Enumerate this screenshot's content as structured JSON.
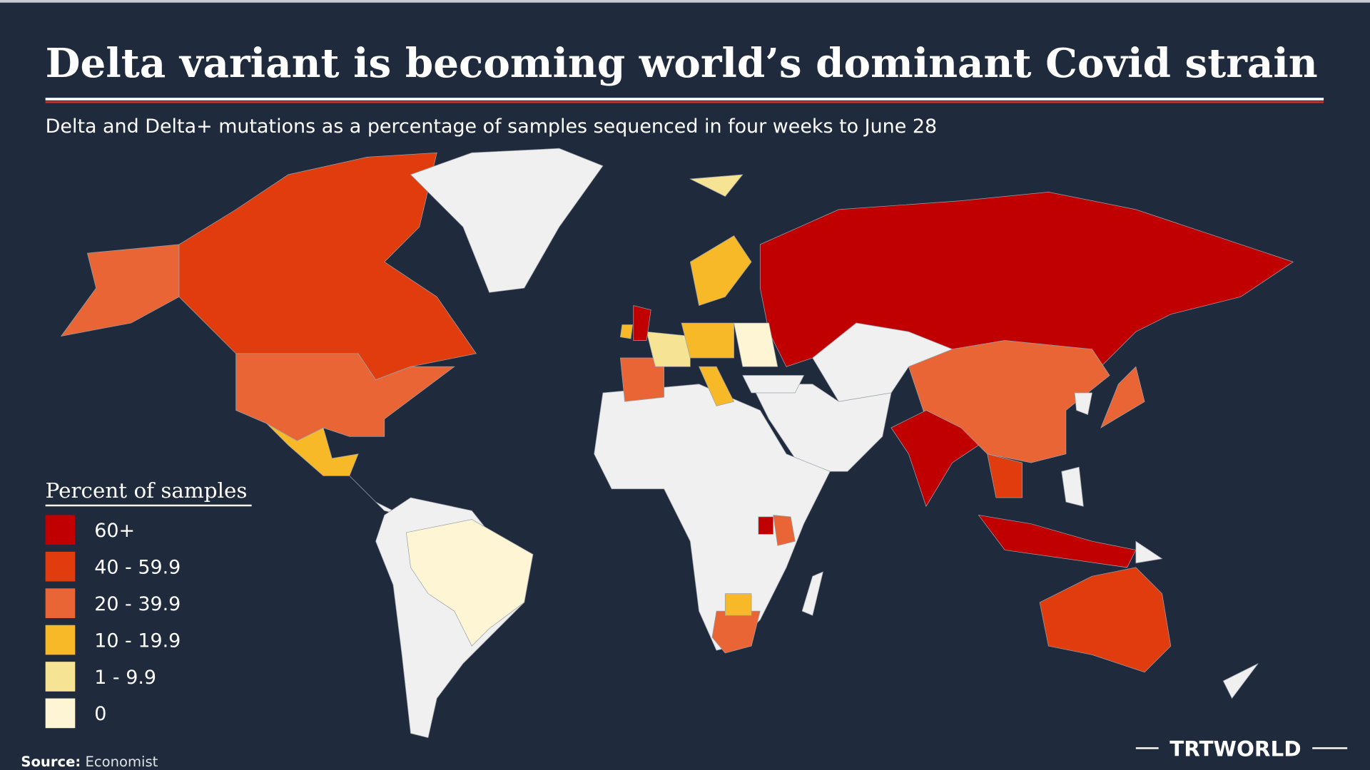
{
  "title": "Delta variant is becoming world’s dominant Covid strain",
  "subtitle": "Delta and Delta+ mutations as a percentage of samples sequenced in four weeks to June 28",
  "legend": {
    "title": "Percent of samples",
    "items": [
      {
        "label": "60+",
        "color": "#c00000"
      },
      {
        "label": "40 - 59.9",
        "color": "#e03c0e"
      },
      {
        "label": "20 - 39.9",
        "color": "#ea6535"
      },
      {
        "label": "10 - 19.9",
        "color": "#f7b928"
      },
      {
        "label": "1 - 9.9",
        "color": "#f6e394"
      },
      {
        "label": "0",
        "color": "#fef5d4"
      }
    ]
  },
  "source": {
    "label": "Source:",
    "text": "Economist"
  },
  "brand": "TRTWORLD"
}
